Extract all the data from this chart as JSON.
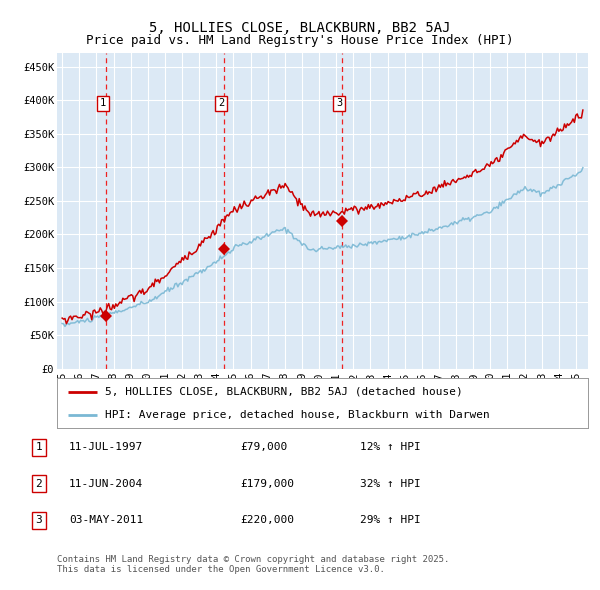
{
  "title": "5, HOLLIES CLOSE, BLACKBURN, BB2 5AJ",
  "subtitle": "Price paid vs. HM Land Registry's House Price Index (HPI)",
  "ylim": [
    0,
    470000
  ],
  "yticks": [
    0,
    50000,
    100000,
    150000,
    200000,
    250000,
    300000,
    350000,
    400000,
    450000
  ],
  "ytick_labels": [
    "£0",
    "£50K",
    "£100K",
    "£150K",
    "£200K",
    "£250K",
    "£300K",
    "£350K",
    "£400K",
    "£450K"
  ],
  "bg_color": "#dce9f5",
  "grid_color": "#ffffff",
  "red_line_color": "#cc0000",
  "blue_line_color": "#7ab8d4",
  "vline_color": "#ee2222",
  "sale_dates": [
    1997.54,
    2004.44,
    2011.34
  ],
  "sale_prices": [
    79000,
    179000,
    220000
  ],
  "sale_labels": [
    "1",
    "2",
    "3"
  ],
  "legend_entries": [
    "5, HOLLIES CLOSE, BLACKBURN, BB2 5AJ (detached house)",
    "HPI: Average price, detached house, Blackburn with Darwen"
  ],
  "table_data": [
    [
      "1",
      "11-JUL-1997",
      "£79,000",
      "12% ↑ HPI"
    ],
    [
      "2",
      "11-JUN-2004",
      "£179,000",
      "32% ↑ HPI"
    ],
    [
      "3",
      "03-MAY-2011",
      "£220,000",
      "29% ↑ HPI"
    ]
  ],
  "footer": "Contains HM Land Registry data © Crown copyright and database right 2025.\nThis data is licensed under the Open Government Licence v3.0.",
  "title_fontsize": 10,
  "subtitle_fontsize": 9,
  "tick_fontsize": 7.5,
  "legend_fontsize": 8,
  "table_fontsize": 8,
  "footer_fontsize": 6.5
}
